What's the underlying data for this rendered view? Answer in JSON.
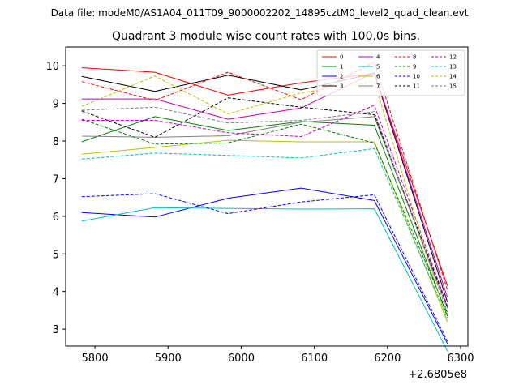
{
  "chart_data": {
    "type": "line",
    "suptitle": "Data file: modeM0/AS1A04_011T09_9000002202_14895cztM0_level2_quad_clean.evt",
    "title": "Quadrant 3 module wise count rates with 100.0s bins.",
    "xlabel": "",
    "ylabel": "",
    "x_offset_label": "+2.6805e8",
    "x": [
      5782,
      5882,
      5982,
      6082,
      6182,
      6282
    ],
    "xlim": [
      5760,
      6310
    ],
    "ylim": [
      2.55,
      10.5
    ],
    "xticks": [
      5800,
      5900,
      6000,
      6100,
      6200,
      6300
    ],
    "xtick_labels": [
      "5800",
      "5900",
      "6000",
      "6100",
      "6200",
      "6300"
    ],
    "yticks": [
      3,
      4,
      5,
      6,
      7,
      8,
      9,
      10
    ],
    "ytick_labels": [
      "3",
      "4",
      "5",
      "6",
      "7",
      "8",
      "9",
      "10"
    ],
    "grid": false,
    "legend_position": "top-right",
    "series": [
      {
        "name": "0",
        "color": "#ff0000",
        "dash": "solid",
        "values": [
          9.95,
          9.83,
          9.22,
          9.55,
          9.8,
          4.15
        ]
      },
      {
        "name": "1",
        "color": "#008000",
        "dash": "solid",
        "values": [
          7.98,
          8.65,
          8.28,
          8.52,
          8.42,
          3.35
        ]
      },
      {
        "name": "2",
        "color": "#0000ff",
        "dash": "solid",
        "values": [
          6.1,
          5.98,
          6.48,
          6.75,
          6.42,
          2.62
        ]
      },
      {
        "name": "3",
        "color": "#000000",
        "dash": "solid",
        "values": [
          9.72,
          9.32,
          9.75,
          9.36,
          9.8,
          3.72
        ]
      },
      {
        "name": "4",
        "color": "#bf00bf",
        "dash": "solid",
        "values": [
          9.12,
          9.12,
          8.58,
          8.88,
          9.82,
          3.85
        ]
      },
      {
        "name": "5",
        "color": "#00bfbf",
        "dash": "solid",
        "values": [
          5.87,
          6.23,
          6.21,
          6.19,
          6.2,
          2.42
        ]
      },
      {
        "name": "6",
        "color": "#bfbf00",
        "dash": "solid",
        "values": [
          7.65,
          7.83,
          8.02,
          7.98,
          7.98,
          3.2
        ]
      },
      {
        "name": "7",
        "color": "#808080",
        "dash": "solid",
        "values": [
          8.13,
          8.1,
          8.14,
          8.5,
          8.65,
          3.55
        ]
      },
      {
        "name": "8",
        "color": "#ff0000",
        "dash": "dashed",
        "values": [
          9.58,
          9.08,
          9.83,
          9.1,
          10.1,
          4.05
        ]
      },
      {
        "name": "9",
        "color": "#008000",
        "dash": "dashed",
        "values": [
          8.58,
          7.92,
          7.95,
          8.45,
          7.95,
          3.42
        ]
      },
      {
        "name": "10",
        "color": "#0000ff",
        "dash": "dashed",
        "values": [
          6.52,
          6.6,
          6.07,
          6.38,
          6.57,
          2.68
        ]
      },
      {
        "name": "11",
        "color": "#000000",
        "dash": "dashed",
        "values": [
          8.8,
          8.1,
          9.15,
          8.9,
          8.7,
          3.6
        ]
      },
      {
        "name": "12",
        "color": "#bf00bf",
        "dash": "dashed",
        "values": [
          8.55,
          8.55,
          8.22,
          8.12,
          8.95,
          3.62
        ]
      },
      {
        "name": "13",
        "color": "#00bfbf",
        "dash": "dashed",
        "values": [
          7.52,
          7.68,
          7.62,
          7.55,
          7.8,
          3.3
        ]
      },
      {
        "name": "14",
        "color": "#bfbf00",
        "dash": "dashed",
        "values": [
          8.92,
          9.73,
          8.72,
          9.28,
          9.58,
          3.18
        ]
      },
      {
        "name": "15",
        "color": "#808080",
        "dash": "dashed",
        "values": [
          8.82,
          8.9,
          8.48,
          8.55,
          8.78,
          3.45
        ]
      }
    ]
  }
}
